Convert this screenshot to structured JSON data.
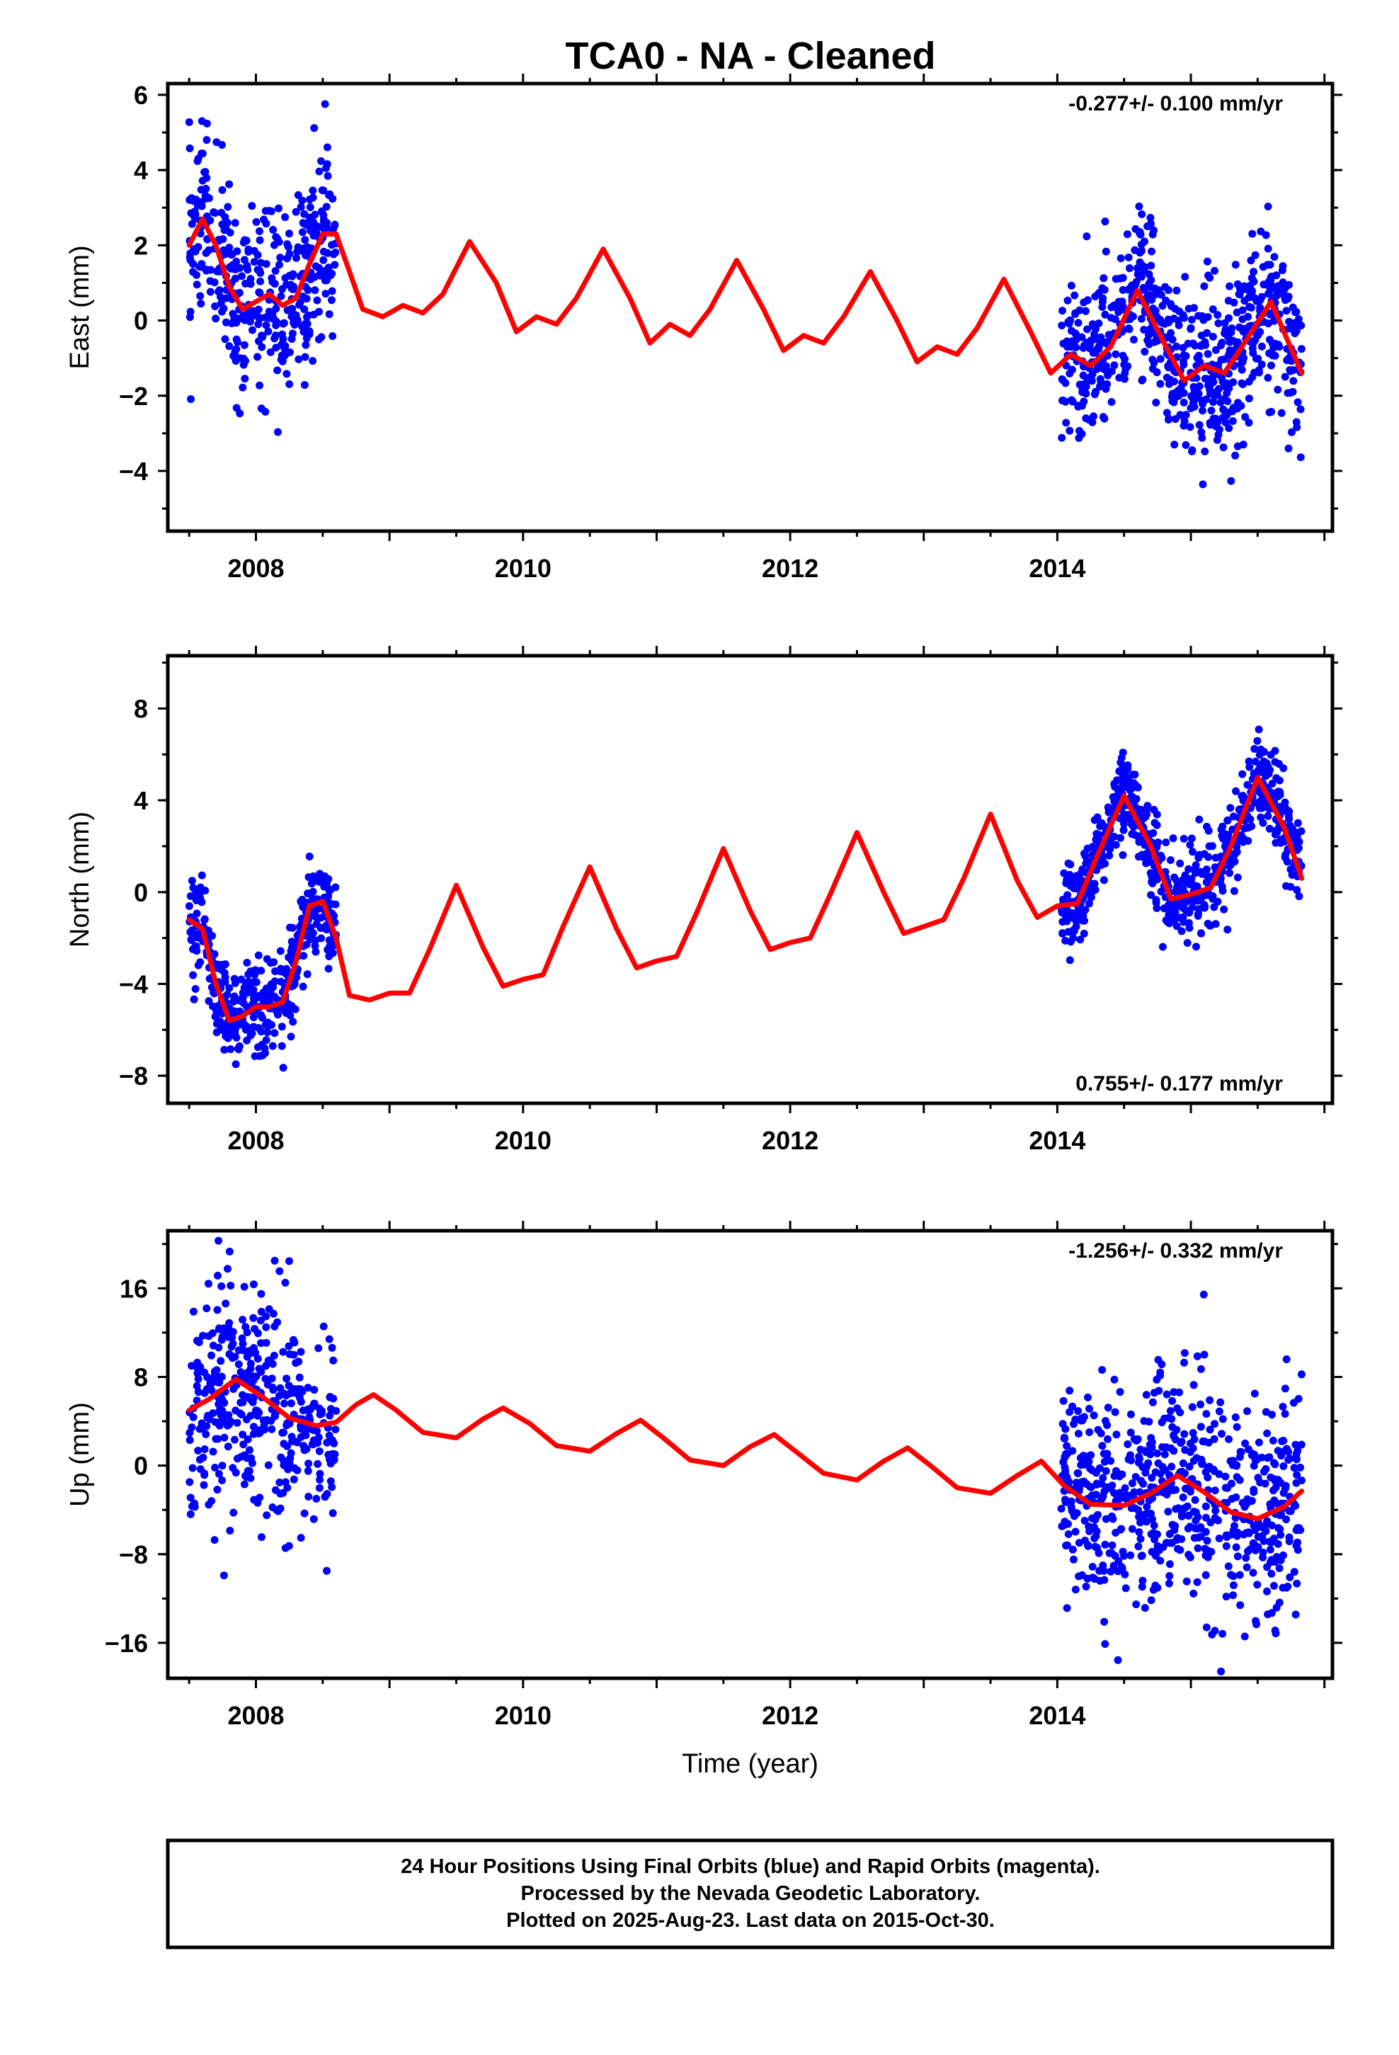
{
  "title": "TCA0  - NA - Cleaned",
  "colors": {
    "points": "#0000ff",
    "fit": "#ff0000",
    "frame": "#000000"
  },
  "footer": {
    "lines": [
      "24 Hour Positions Using Final Orbits (blue) and Rapid Orbits (magenta).",
      "Processed by the Nevada Geodetic Laboratory.",
      "Plotted on 2025-Aug-23. Last data on 2015-Oct-30."
    ]
  },
  "chart_data": [
    {
      "type": "scatter",
      "ylabel": "East (mm)",
      "xlabel": "",
      "rate_text": "-0.277+/- 0.100 mm/yr",
      "rate_position": "top-right",
      "xlim": [
        2007.34,
        2016.06
      ],
      "ylim": [
        -5.6,
        6.3
      ],
      "xticks": [
        2008,
        2010,
        2012,
        2014
      ],
      "yticks": [
        -4,
        -2,
        0,
        2,
        4,
        6
      ],
      "grid": false,
      "scatter_segments": [
        {
          "x_range": [
            2007.5,
            2008.6
          ],
          "amplitude": 1.5,
          "noise": 1.2
        },
        {
          "x_range": [
            2014.03,
            2015.83
          ],
          "amplitude": 1.4,
          "noise": 1.1
        }
      ],
      "series": [
        {
          "style": "line",
          "x": [
            2007.5,
            2007.6,
            2007.7,
            2007.8,
            2007.9,
            2008.0,
            2008.1,
            2008.2,
            2008.3,
            2008.4,
            2008.5,
            2008.6,
            2008.7,
            2008.8,
            2008.95,
            2009.1,
            2009.25,
            2009.4,
            2009.6,
            2009.8,
            2009.95,
            2010.1,
            2010.25,
            2010.4,
            2010.6,
            2010.8,
            2010.95,
            2011.1,
            2011.25,
            2011.4,
            2011.6,
            2011.8,
            2011.95,
            2012.1,
            2012.25,
            2012.4,
            2012.6,
            2012.8,
            2012.95,
            2013.1,
            2013.25,
            2013.4,
            2013.6,
            2013.8,
            2013.95,
            2014.1,
            2014.25,
            2014.4,
            2014.6,
            2014.8,
            2014.95,
            2015.1,
            2015.25,
            2015.4,
            2015.6,
            2015.83
          ],
          "y": [
            2.0,
            2.7,
            2.0,
            0.9,
            0.3,
            0.5,
            0.7,
            0.4,
            0.6,
            1.5,
            2.3,
            2.3,
            1.3,
            0.3,
            0.1,
            0.4,
            0.2,
            0.7,
            2.1,
            1.0,
            -0.3,
            0.1,
            -0.1,
            0.6,
            1.9,
            0.6,
            -0.6,
            -0.1,
            -0.4,
            0.3,
            1.6,
            0.3,
            -0.8,
            -0.4,
            -0.6,
            0.1,
            1.3,
            0.0,
            -1.1,
            -0.7,
            -0.9,
            -0.2,
            1.1,
            -0.3,
            -1.4,
            -0.9,
            -1.2,
            -0.7,
            0.8,
            -0.6,
            -1.6,
            -1.2,
            -1.4,
            -0.6,
            0.5,
            -1.4
          ]
        }
      ]
    },
    {
      "type": "scatter",
      "ylabel": "North (mm)",
      "xlabel": "",
      "rate_text": "0.755+/- 0.177 mm/yr",
      "rate_position": "bottom-right",
      "xlim": [
        2007.34,
        2016.06
      ],
      "ylim": [
        -9.2,
        10.3
      ],
      "xticks": [
        2008,
        2010,
        2012,
        2014
      ],
      "yticks": [
        -8,
        -4,
        0,
        4,
        8
      ],
      "grid": false,
      "scatter_segments": [
        {
          "x_range": [
            2007.5,
            2008.6
          ],
          "amplitude": 2.4,
          "noise": 1.0
        },
        {
          "x_range": [
            2014.03,
            2015.83
          ],
          "amplitude": 2.5,
          "noise": 1.0
        }
      ],
      "series": [
        {
          "style": "line",
          "x": [
            2007.5,
            2007.6,
            2007.7,
            2007.8,
            2007.9,
            2008.0,
            2008.1,
            2008.2,
            2008.3,
            2008.4,
            2008.5,
            2008.6,
            2008.7,
            2008.85,
            2009.0,
            2009.15,
            2009.3,
            2009.5,
            2009.7,
            2009.85,
            2010.0,
            2010.15,
            2010.3,
            2010.5,
            2010.7,
            2010.85,
            2011.0,
            2011.15,
            2011.3,
            2011.5,
            2011.7,
            2011.85,
            2012.0,
            2012.15,
            2012.3,
            2012.5,
            2012.7,
            2012.85,
            2013.0,
            2013.15,
            2013.3,
            2013.5,
            2013.7,
            2013.85,
            2014.0,
            2014.15,
            2014.3,
            2014.5,
            2014.7,
            2014.85,
            2015.0,
            2015.15,
            2015.3,
            2015.5,
            2015.7,
            2015.83
          ],
          "y": [
            -1.2,
            -1.6,
            -4.0,
            -5.6,
            -5.4,
            -5.0,
            -5.0,
            -4.8,
            -3.0,
            -0.6,
            -0.4,
            -2.0,
            -4.5,
            -4.7,
            -4.4,
            -4.4,
            -2.5,
            0.3,
            -2.4,
            -4.1,
            -3.8,
            -3.6,
            -1.5,
            1.1,
            -1.6,
            -3.3,
            -3.0,
            -2.8,
            -0.9,
            1.9,
            -0.8,
            -2.5,
            -2.2,
            -2.0,
            -0.1,
            2.6,
            0.0,
            -1.8,
            -1.5,
            -1.2,
            0.6,
            3.4,
            0.5,
            -1.1,
            -0.6,
            -0.5,
            1.6,
            4.2,
            2.0,
            -0.3,
            -0.1,
            0.2,
            2.0,
            5.0,
            2.8,
            0.6
          ]
        }
      ]
    },
    {
      "type": "scatter",
      "ylabel": "Up (mm)",
      "xlabel": "Time (year)",
      "rate_text": "-1.256+/- 0.332 mm/yr",
      "rate_position": "top-right",
      "xlim": [
        2007.34,
        2016.06
      ],
      "ylim": [
        -19.2,
        21.2
      ],
      "xticks": [
        2008,
        2010,
        2012,
        2014
      ],
      "yticks": [
        -16,
        -8,
        0,
        8,
        16
      ],
      "grid": false,
      "scatter_segments": [
        {
          "x_range": [
            2007.5,
            2008.6
          ],
          "amplitude": 3.0,
          "noise": 5.0
        },
        {
          "x_range": [
            2014.03,
            2015.83
          ],
          "amplitude": 2.5,
          "noise": 5.0
        }
      ],
      "series": [
        {
          "style": "line",
          "x": [
            2007.5,
            2007.65,
            2007.85,
            2008.05,
            2008.25,
            2008.45,
            2008.6,
            2008.75,
            2008.88,
            2009.05,
            2009.25,
            2009.5,
            2009.7,
            2009.85,
            2010.05,
            2010.25,
            2010.5,
            2010.7,
            2010.88,
            2011.05,
            2011.25,
            2011.5,
            2011.7,
            2011.88,
            2012.05,
            2012.25,
            2012.5,
            2012.7,
            2012.88,
            2013.05,
            2013.25,
            2013.5,
            2013.7,
            2013.88,
            2014.05,
            2014.25,
            2014.5,
            2014.7,
            2014.9,
            2015.1,
            2015.3,
            2015.5,
            2015.7,
            2015.83
          ],
          "y": [
            5.0,
            6.0,
            7.8,
            6.2,
            4.3,
            3.6,
            3.9,
            5.5,
            6.4,
            5.0,
            3.0,
            2.5,
            4.2,
            5.2,
            3.8,
            1.8,
            1.3,
            2.9,
            4.1,
            2.5,
            0.5,
            0.0,
            1.7,
            2.8,
            1.2,
            -0.7,
            -1.3,
            0.4,
            1.6,
            0.0,
            -2.0,
            -2.5,
            -0.9,
            0.4,
            -1.8,
            -3.5,
            -3.6,
            -2.5,
            -0.9,
            -2.4,
            -4.2,
            -4.8,
            -3.7,
            -2.3
          ]
        }
      ]
    }
  ]
}
